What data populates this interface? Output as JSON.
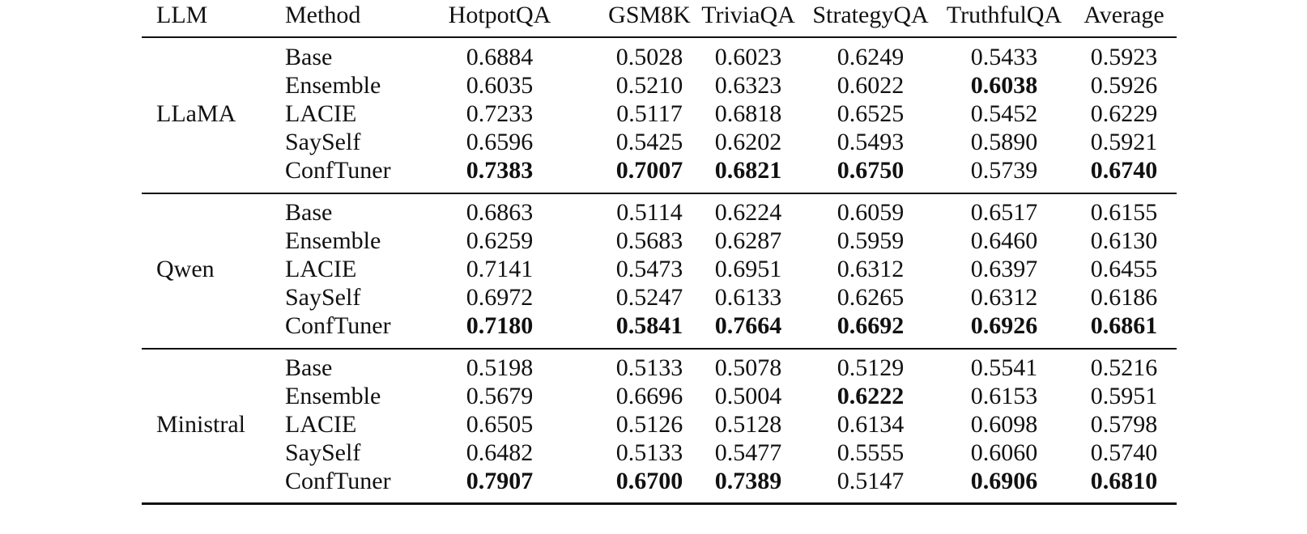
{
  "table": {
    "columns": [
      "LLM",
      "Method",
      "HotpotQA",
      "GSM8K",
      "TriviaQA",
      "StrategyQA",
      "TruthfulQA",
      "Average"
    ],
    "groups": [
      {
        "llm": "LLaMA",
        "rows": [
          {
            "method": "Base",
            "values": [
              "0.6884",
              "0.5028",
              "0.6023",
              "0.6249",
              "0.5433",
              "0.5923"
            ],
            "bold": [
              false,
              false,
              false,
              false,
              false,
              false
            ]
          },
          {
            "method": "Ensemble",
            "values": [
              "0.6035",
              "0.5210",
              "0.6323",
              "0.6022",
              "0.6038",
              "0.5926"
            ],
            "bold": [
              false,
              false,
              false,
              false,
              true,
              false
            ]
          },
          {
            "method": "LACIE",
            "values": [
              "0.7233",
              "0.5117",
              "0.6818",
              "0.6525",
              "0.5452",
              "0.6229"
            ],
            "bold": [
              false,
              false,
              false,
              false,
              false,
              false
            ]
          },
          {
            "method": "SaySelf",
            "values": [
              "0.6596",
              "0.5425",
              "0.6202",
              "0.5493",
              "0.5890",
              "0.5921"
            ],
            "bold": [
              false,
              false,
              false,
              false,
              false,
              false
            ]
          },
          {
            "method": "ConfTuner",
            "values": [
              "0.7383",
              "0.7007",
              "0.6821",
              "0.6750",
              "0.5739",
              "0.6740"
            ],
            "bold": [
              true,
              true,
              true,
              true,
              false,
              true
            ]
          }
        ]
      },
      {
        "llm": "Qwen",
        "rows": [
          {
            "method": "Base",
            "values": [
              "0.6863",
              "0.5114",
              "0.6224",
              "0.6059",
              "0.6517",
              "0.6155"
            ],
            "bold": [
              false,
              false,
              false,
              false,
              false,
              false
            ]
          },
          {
            "method": "Ensemble",
            "values": [
              "0.6259",
              "0.5683",
              "0.6287",
              "0.5959",
              "0.6460",
              "0.6130"
            ],
            "bold": [
              false,
              false,
              false,
              false,
              false,
              false
            ]
          },
          {
            "method": "LACIE",
            "values": [
              "0.7141",
              "0.5473",
              "0.6951",
              "0.6312",
              "0.6397",
              "0.6455"
            ],
            "bold": [
              false,
              false,
              false,
              false,
              false,
              false
            ]
          },
          {
            "method": "SaySelf",
            "values": [
              "0.6972",
              "0.5247",
              "0.6133",
              "0.6265",
              "0.6312",
              "0.6186"
            ],
            "bold": [
              false,
              false,
              false,
              false,
              false,
              false
            ]
          },
          {
            "method": "ConfTuner",
            "values": [
              "0.7180",
              "0.5841",
              "0.7664",
              "0.6692",
              "0.6926",
              "0.6861"
            ],
            "bold": [
              true,
              true,
              true,
              true,
              true,
              true
            ]
          }
        ]
      },
      {
        "llm": "Ministral",
        "rows": [
          {
            "method": "Base",
            "values": [
              "0.5198",
              "0.5133",
              "0.5078",
              "0.5129",
              "0.5541",
              "0.5216"
            ],
            "bold": [
              false,
              false,
              false,
              false,
              false,
              false
            ]
          },
          {
            "method": "Ensemble",
            "values": [
              "0.5679",
              "0.6696",
              "0.5004",
              "0.6222",
              "0.6153",
              "0.5951"
            ],
            "bold": [
              false,
              false,
              false,
              true,
              false,
              false
            ]
          },
          {
            "method": "LACIE",
            "values": [
              "0.6505",
              "0.5126",
              "0.5128",
              "0.6134",
              "0.6098",
              "0.5798"
            ],
            "bold": [
              false,
              false,
              false,
              false,
              false,
              false
            ]
          },
          {
            "method": "SaySelf",
            "values": [
              "0.6482",
              "0.5133",
              "0.5477",
              "0.5555",
              "0.6060",
              "0.5740"
            ],
            "bold": [
              false,
              false,
              false,
              false,
              false,
              false
            ]
          },
          {
            "method": "ConfTuner",
            "values": [
              "0.7907",
              "0.6700",
              "0.7389",
              "0.5147",
              "0.6906",
              "0.6810"
            ],
            "bold": [
              true,
              true,
              true,
              false,
              true,
              true
            ]
          }
        ]
      }
    ]
  }
}
